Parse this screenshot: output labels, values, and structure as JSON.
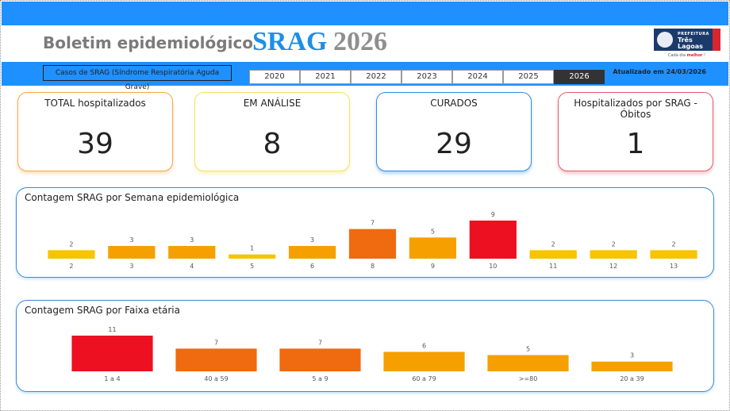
{
  "header": {
    "title": "Boletim epidemiológico",
    "srag_word": "SRAG",
    "year_word": "2026"
  },
  "logo": {
    "prefix": "PREFEITURA",
    "name": "Três Lagoas",
    "slogan_pre": "Cada dia ",
    "slogan_bold": "melhor",
    "slogan_post": " !"
  },
  "filter": {
    "subtitle": "Casos de SRAG (Síndrome Respiratória Aguda Grave)",
    "years": [
      "2020",
      "2021",
      "2022",
      "2023",
      "2024",
      "2025",
      "2026"
    ],
    "selected": "2026",
    "updated": "Atualizado em 24/03/2026"
  },
  "cards": [
    {
      "label": "TOTAL hospitalizados",
      "value": "39"
    },
    {
      "label": "EM ANÁLISE",
      "value": "8"
    },
    {
      "label": "CURADOS",
      "value": "29"
    },
    {
      "label": "Hospitalizados por SRAG - Óbitos",
      "value": "1"
    }
  ],
  "colors": {
    "accent": "#1e90ff",
    "card_orange": "#f5a74a",
    "card_yellow": "#f3e26a",
    "card_blue": "#2f8ae6",
    "card_red": "#e0606a",
    "bar_low": "#f7c400",
    "bar_mid": "#f5a000",
    "bar_high": "#f06a10",
    "bar_max": "#ec1020"
  },
  "chart_data": [
    {
      "type": "bar",
      "title": "Contagem SRAG por Semana epidemiológica",
      "xlabel": "",
      "ylabel": "",
      "categories": [
        "2",
        "3",
        "4",
        "5",
        "6",
        "8",
        "9",
        "10",
        "11",
        "12",
        "13"
      ],
      "values": [
        2,
        3,
        3,
        1,
        3,
        7,
        5,
        9,
        2,
        2,
        2
      ],
      "ylim": [
        0,
        9
      ]
    },
    {
      "type": "bar",
      "title": "Contagem SRAG por Faixa etária",
      "xlabel": "",
      "ylabel": "",
      "categories": [
        "1 a 4",
        "40 a 59",
        "5 a 9",
        "60 a 79",
        ">=80",
        "20 a 39"
      ],
      "values": [
        11,
        7,
        7,
        6,
        5,
        3
      ],
      "ylim": [
        0,
        11
      ]
    }
  ]
}
